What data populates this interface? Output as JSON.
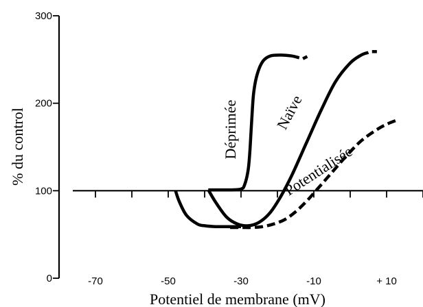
{
  "chart_data": {
    "type": "line",
    "title": "",
    "xlabel": "Potentiel de membrane (mV)",
    "ylabel": "% du control",
    "xlim": [
      -80,
      20
    ],
    "ylim": [
      0,
      300
    ],
    "x_ticks": [
      -70,
      -50,
      -30,
      -10,
      10
    ],
    "x_tick_labels": [
      "-70",
      "-50",
      "-30",
      "-10",
      "+ 10"
    ],
    "y_ticks": [
      0,
      100,
      200,
      300
    ],
    "y_tick_labels": [
      "0",
      "100",
      "200",
      "300"
    ],
    "reference_line": 100,
    "series": [
      {
        "name": "Déprimée",
        "color": "#000000",
        "style": "solid",
        "points": [
          [
            -48,
            100
          ],
          [
            -47,
            88
          ],
          [
            -45,
            72
          ],
          [
            -42,
            62
          ],
          [
            -40,
            60
          ],
          [
            -37,
            59
          ],
          [
            -34,
            59
          ],
          [
            -30,
            59
          ]
        ],
        "points_b": [
          [
            -39,
            101
          ],
          [
            -36,
            101
          ],
          [
            -33,
            101
          ],
          [
            -30,
            102
          ],
          [
            -29,
            107
          ],
          [
            -28,
            125
          ],
          [
            -27.5,
            150
          ],
          [
            -27,
            185
          ],
          [
            -26.5,
            213
          ],
          [
            -25.5,
            234
          ],
          [
            -24,
            248
          ],
          [
            -22,
            254
          ],
          [
            -19,
            255
          ],
          [
            -16,
            254
          ],
          [
            -14,
            252
          ]
        ],
        "dash_tail": [
          [
            -13,
            251
          ],
          [
            -11,
            255
          ]
        ]
      },
      {
        "name": "Naïve",
        "color": "#000000",
        "style": "solid",
        "points": [
          [
            -39,
            101
          ],
          [
            -37,
            87
          ],
          [
            -34,
            70
          ],
          [
            -31,
            62
          ],
          [
            -28,
            60
          ],
          [
            -25,
            64
          ],
          [
            -22,
            75
          ],
          [
            -19,
            94
          ],
          [
            -16,
            118
          ],
          [
            -12,
            155
          ],
          [
            -8,
            192
          ],
          [
            -4,
            225
          ],
          [
            0,
            246
          ],
          [
            3,
            255
          ],
          [
            5,
            258
          ]
        ],
        "dash_tail": [
          [
            6,
            259
          ],
          [
            8,
            259
          ]
        ]
      },
      {
        "name": "Potentialisée",
        "color": "#000000",
        "style": "dashed",
        "points": [
          [
            -33,
            58
          ],
          [
            -30,
            58
          ],
          [
            -27,
            58
          ],
          [
            -24,
            59
          ],
          [
            -21,
            62
          ],
          [
            -18,
            67
          ],
          [
            -15,
            76
          ],
          [
            -12,
            88
          ],
          [
            -9,
            102
          ],
          [
            -5,
            121
          ],
          [
            -1,
            140
          ],
          [
            3,
            157
          ],
          [
            7,
            169
          ],
          [
            10,
            176
          ],
          [
            13,
            181
          ]
        ]
      }
    ],
    "annotations": [
      {
        "text": "Déprimée",
        "x": -31.5,
        "y": 170,
        "rotate": -90
      },
      {
        "text": "Naïve",
        "x": -15.5,
        "y": 187,
        "rotate": -62
      },
      {
        "text": "Potentialisée",
        "x": -8,
        "y": 118,
        "rotate": -33
      }
    ]
  }
}
